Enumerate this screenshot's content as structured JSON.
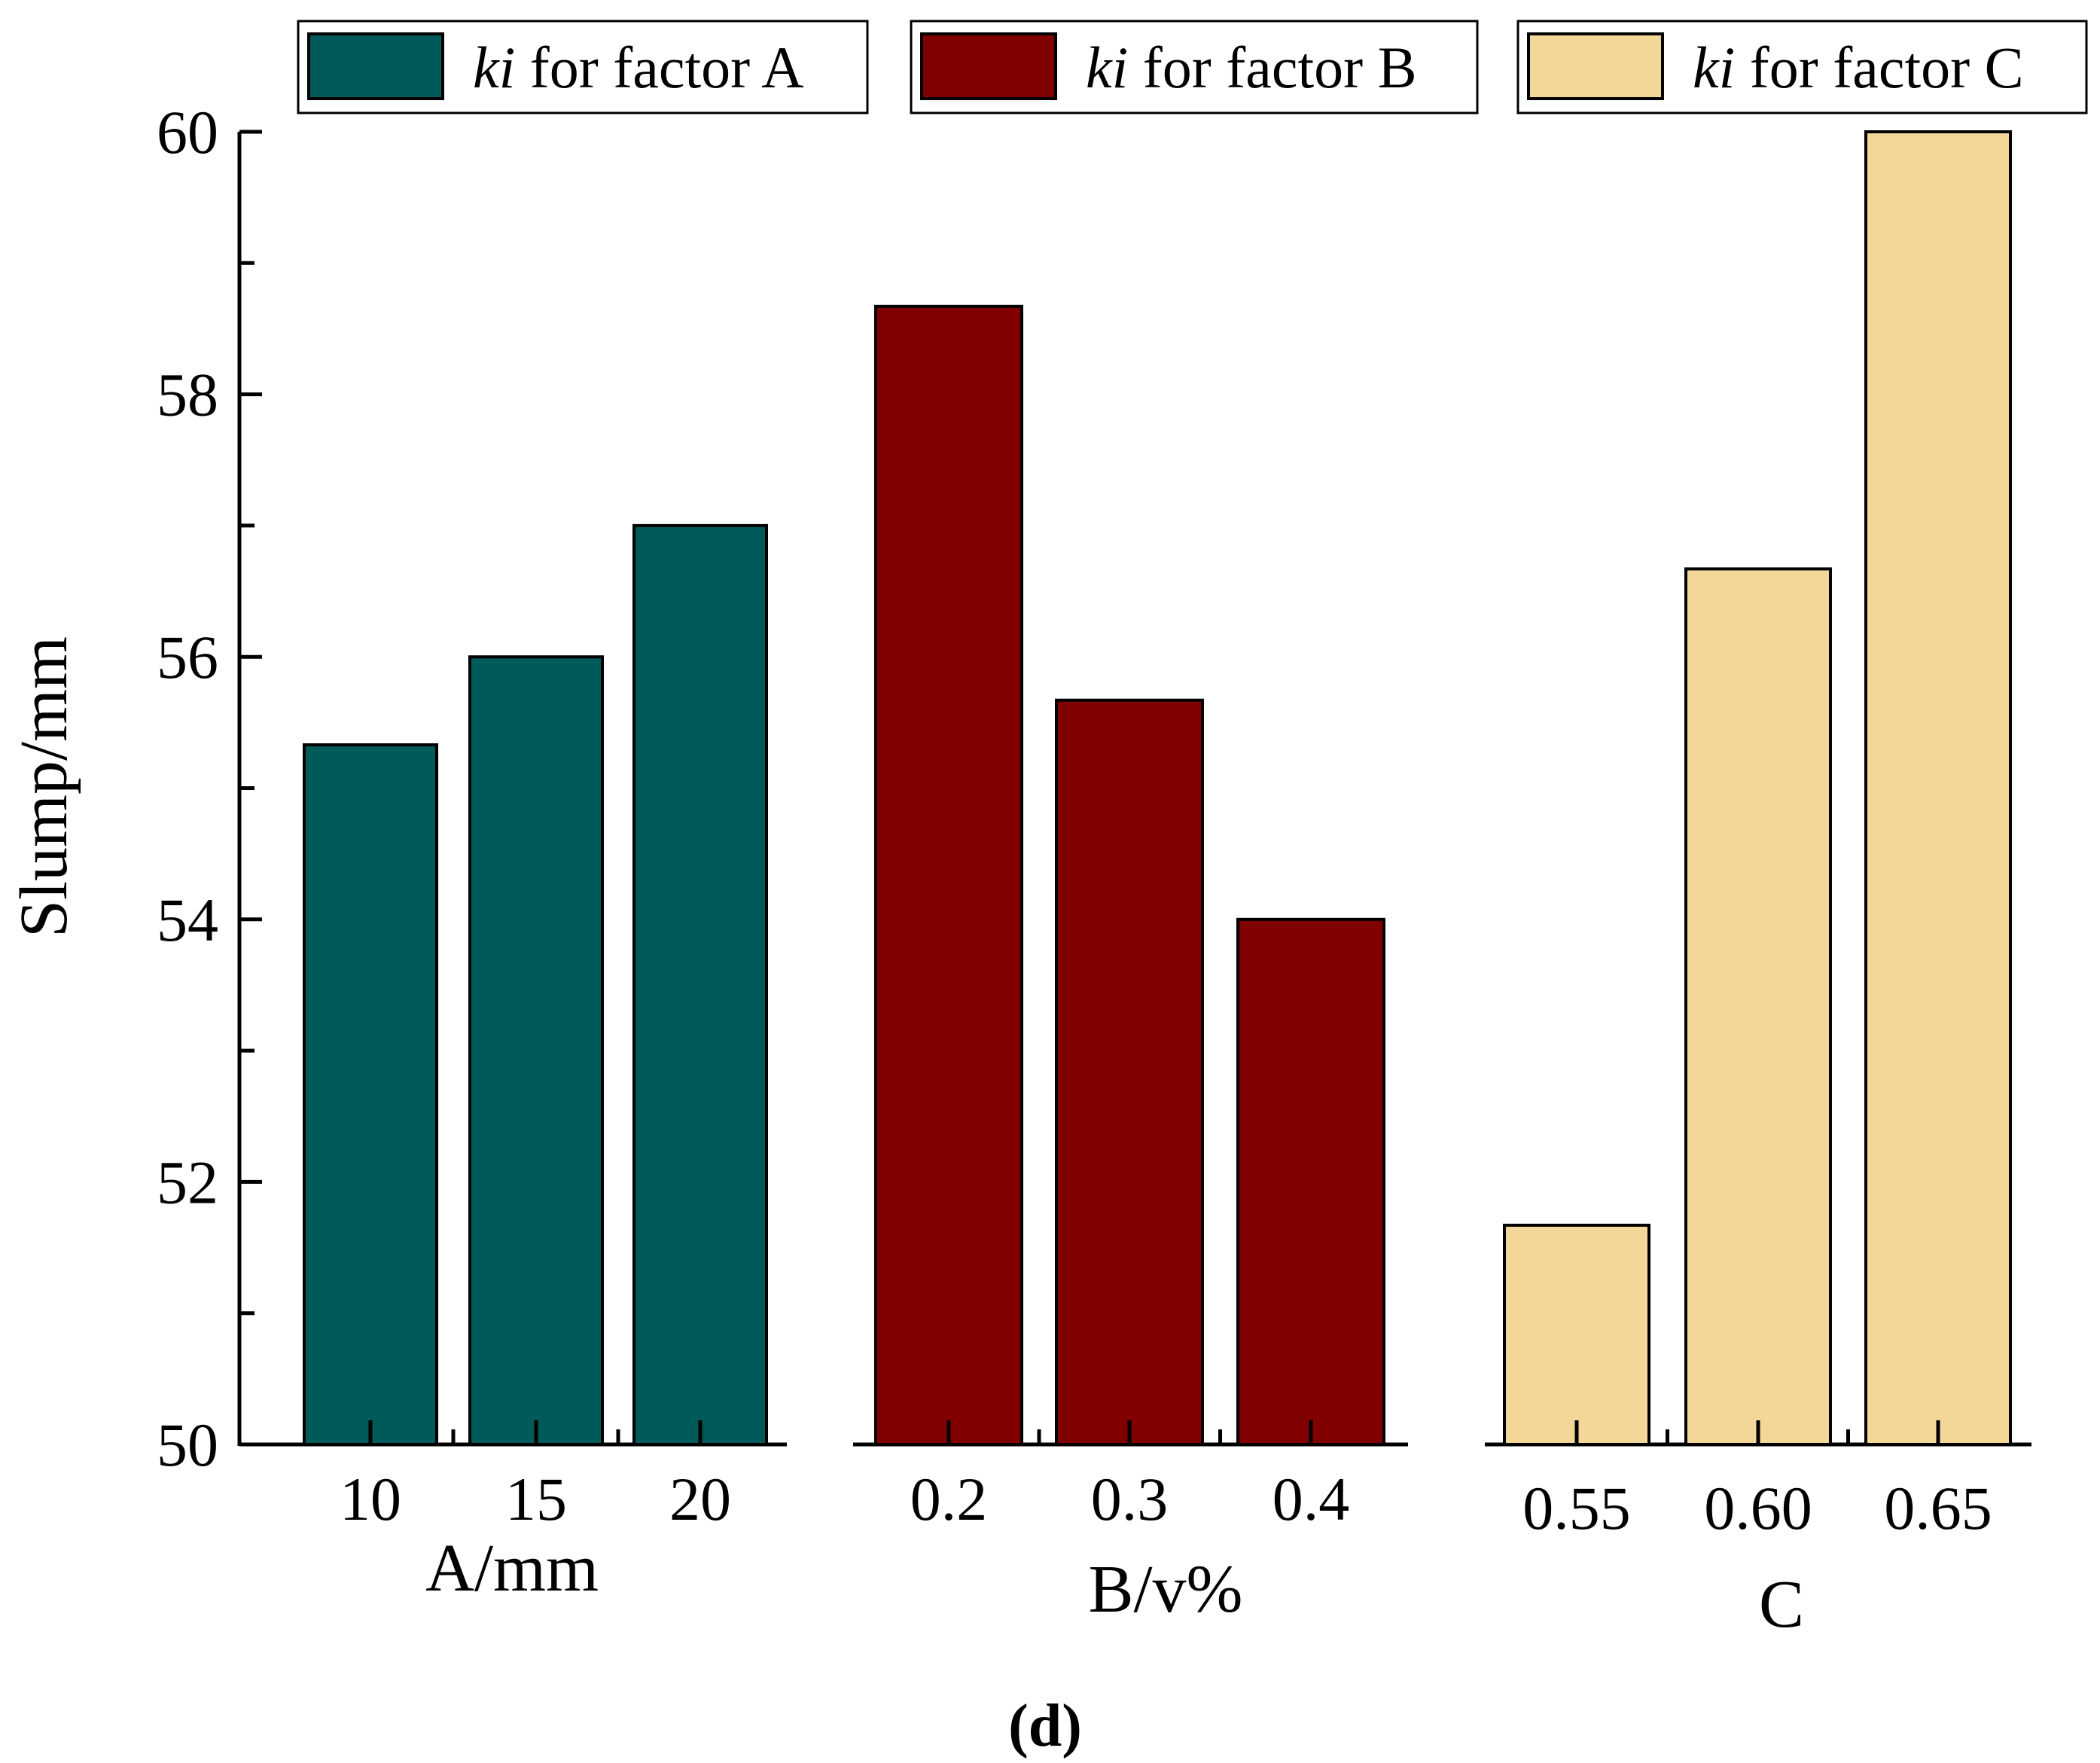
{
  "chart_data": {
    "type": "bar",
    "ylabel": "Slump/mm",
    "ylim": [
      50,
      60
    ],
    "yticks": [
      "50",
      "52",
      "54",
      "56",
      "58",
      "60"
    ],
    "panel_label": "(d)",
    "legend_placement": "top",
    "groups": [
      {
        "legend_italic": "ki",
        "legend_rest": " for factor A",
        "color": "#005a59",
        "xlabel": "A/mm",
        "categories": [
          "10",
          "15",
          "20"
        ],
        "values": [
          55.33,
          56.0,
          57.0
        ]
      },
      {
        "legend_italic": "ki",
        "legend_rest": " for factor B",
        "color": "#800000",
        "xlabel": "B/v%",
        "categories": [
          "0.2",
          "0.3",
          "0.4"
        ],
        "values": [
          58.67,
          55.67,
          54.0
        ]
      },
      {
        "legend_italic": "ki",
        "legend_rest": " for factor C",
        "color": "#f2d799",
        "xlabel": "C",
        "categories": [
          "0.55",
          "0.60",
          "0.65"
        ],
        "values": [
          51.67,
          56.67,
          60.0
        ]
      }
    ]
  }
}
